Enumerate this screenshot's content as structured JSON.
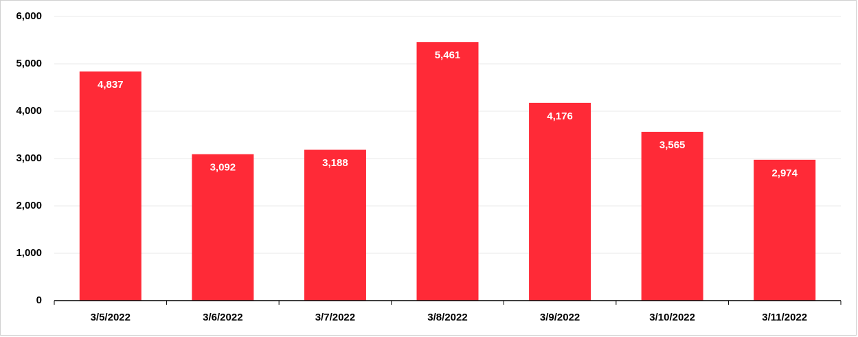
{
  "chart_data": {
    "type": "bar",
    "categories": [
      "3/5/2022",
      "3/6/2022",
      "3/7/2022",
      "3/8/2022",
      "3/9/2022",
      "3/10/2022",
      "3/11/2022"
    ],
    "values": [
      4837,
      3092,
      3188,
      5461,
      4176,
      3565,
      2974
    ],
    "value_labels": [
      "4,837",
      "3,092",
      "3,188",
      "5,461",
      "4,176",
      "3,565",
      "2,974"
    ],
    "color": "#ff2a37",
    "ylim": [
      0,
      6000
    ],
    "yticks": [
      0,
      {
        "value": 1000,
        "label": "1,000"
      },
      {
        "value": 2000,
        "label": "2,000"
      },
      {
        "value": 3000,
        "label": "3,000"
      },
      {
        "value": 4000,
        "label": "4,000"
      },
      {
        "value": 5000,
        "label": "5,000"
      },
      {
        "value": 6000,
        "label": "6,000"
      }
    ],
    "grid": true
  }
}
